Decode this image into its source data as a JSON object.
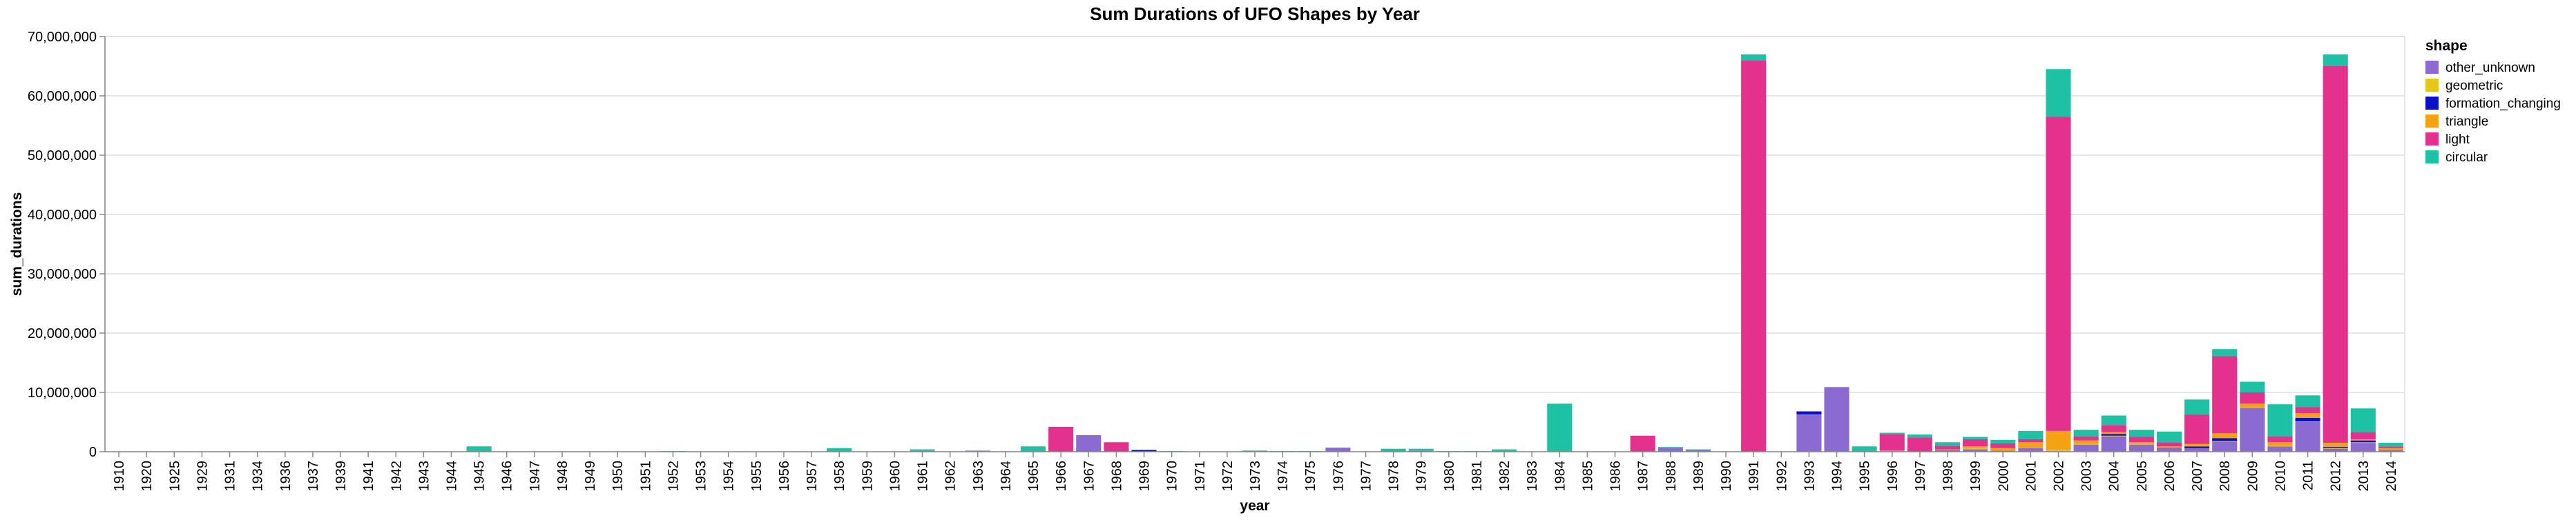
{
  "chart_data": {
    "type": "bar",
    "stacked": true,
    "title": "Sum Durations of UFO Shapes by Year",
    "xlabel": "year",
    "ylabel": "sum_durations",
    "ylim": [
      0,
      70000000
    ],
    "yticks": [
      0,
      10000000,
      20000000,
      30000000,
      40000000,
      50000000,
      60000000,
      70000000
    ],
    "ytick_labels": [
      "0",
      "10,000,000",
      "20,000,000",
      "30,000,000",
      "40,000,000",
      "50,000,000",
      "60,000,000",
      "70,000,000"
    ],
    "grid": true,
    "legend": {
      "title": "shape",
      "position": "right"
    },
    "categories": [
      "1910",
      "1920",
      "1925",
      "1929",
      "1931",
      "1934",
      "1936",
      "1937",
      "1939",
      "1941",
      "1942",
      "1943",
      "1944",
      "1945",
      "1946",
      "1947",
      "1948",
      "1949",
      "1950",
      "1951",
      "1952",
      "1953",
      "1954",
      "1955",
      "1956",
      "1957",
      "1958",
      "1959",
      "1960",
      "1961",
      "1962",
      "1963",
      "1964",
      "1965",
      "1966",
      "1967",
      "1968",
      "1969",
      "1970",
      "1971",
      "1972",
      "1973",
      "1974",
      "1975",
      "1976",
      "1977",
      "1978",
      "1979",
      "1980",
      "1981",
      "1982",
      "1983",
      "1984",
      "1985",
      "1986",
      "1987",
      "1988",
      "1989",
      "1990",
      "1991",
      "1992",
      "1993",
      "1994",
      "1995",
      "1996",
      "1997",
      "1998",
      "1999",
      "2000",
      "2001",
      "2002",
      "2003",
      "2004",
      "2005",
      "2006",
      "2007",
      "2008",
      "2009",
      "2010",
      "2011",
      "2012",
      "2013",
      "2014"
    ],
    "series": [
      {
        "name": "other_unknown",
        "color": "#8b6ad1",
        "values": [
          0,
          0,
          0,
          0,
          0,
          0,
          0,
          0,
          0,
          0,
          0,
          0,
          0,
          0,
          0,
          0,
          0,
          0,
          0,
          0,
          0,
          0,
          0,
          0,
          0,
          0,
          0,
          0,
          0,
          200000,
          0,
          100000,
          0,
          0,
          0,
          2800000,
          0,
          0,
          0,
          0,
          0,
          0,
          0,
          0,
          700000,
          0,
          0,
          200000,
          0,
          0,
          0,
          0,
          0,
          0,
          0,
          0,
          600000,
          300000,
          0,
          0,
          0,
          6300000,
          10900000,
          0,
          100000,
          0,
          300000,
          400000,
          200000,
          600000,
          100000,
          1200000,
          2600000,
          1200000,
          700000,
          600000,
          1700000,
          7400000,
          900000,
          5000000,
          500000,
          1500000,
          300000
        ]
      },
      {
        "name": "geometric",
        "color": "#e6c619",
        "values": [
          0,
          0,
          0,
          0,
          0,
          0,
          0,
          0,
          0,
          0,
          0,
          0,
          0,
          0,
          0,
          0,
          0,
          0,
          0,
          0,
          0,
          0,
          0,
          0,
          0,
          0,
          0,
          0,
          0,
          0,
          0,
          0,
          0,
          0,
          0,
          0,
          0,
          0,
          0,
          0,
          0,
          0,
          0,
          0,
          0,
          0,
          0,
          0,
          0,
          0,
          0,
          0,
          0,
          0,
          0,
          0,
          0,
          0,
          0,
          0,
          0,
          0,
          0,
          0,
          0,
          0,
          0,
          200000,
          0,
          0,
          200000,
          100000,
          100000,
          100000,
          0,
          0,
          100000,
          100000,
          100000,
          100000,
          100000,
          100000,
          0
        ]
      },
      {
        "name": "formation_changing",
        "color": "#0a10c8",
        "values": [
          0,
          0,
          0,
          0,
          0,
          0,
          0,
          0,
          0,
          0,
          0,
          0,
          0,
          0,
          0,
          0,
          0,
          0,
          0,
          0,
          0,
          0,
          0,
          0,
          0,
          0,
          0,
          0,
          0,
          0,
          0,
          0,
          0,
          0,
          0,
          0,
          0,
          300000,
          0,
          0,
          0,
          0,
          0,
          0,
          0,
          0,
          0,
          0,
          0,
          0,
          0,
          0,
          0,
          0,
          0,
          0,
          0,
          0,
          0,
          0,
          0,
          500000,
          0,
          0,
          0,
          0,
          0,
          0,
          0,
          0,
          0,
          0,
          300000,
          0,
          0,
          300000,
          500000,
          0,
          0,
          600000,
          200000,
          300000,
          0
        ]
      },
      {
        "name": "triangle",
        "color": "#f5a212",
        "values": [
          0,
          0,
          0,
          0,
          0,
          0,
          0,
          0,
          0,
          0,
          0,
          0,
          0,
          0,
          0,
          0,
          0,
          0,
          0,
          0,
          0,
          0,
          0,
          0,
          0,
          0,
          0,
          0,
          0,
          0,
          0,
          0,
          0,
          0,
          0,
          0,
          0,
          0,
          0,
          0,
          0,
          0,
          0,
          0,
          0,
          0,
          0,
          0,
          0,
          0,
          0,
          0,
          0,
          0,
          0,
          0,
          0,
          0,
          0,
          0,
          0,
          0,
          0,
          0,
          100000,
          0,
          100000,
          300000,
          400000,
          1000000,
          3200000,
          600000,
          300000,
          300000,
          200000,
          400000,
          800000,
          600000,
          600000,
          800000,
          700000,
          200000,
          300000
        ]
      },
      {
        "name": "light",
        "color": "#e4318d",
        "values": [
          0,
          0,
          0,
          0,
          0,
          0,
          0,
          0,
          0,
          0,
          0,
          0,
          0,
          0,
          0,
          0,
          0,
          0,
          0,
          0,
          0,
          0,
          0,
          0,
          0,
          0,
          0,
          0,
          0,
          0,
          0,
          0,
          0,
          0,
          4200000,
          0,
          1600000,
          0,
          0,
          0,
          0,
          0,
          0,
          0,
          0,
          0,
          0,
          0,
          0,
          0,
          0,
          0,
          0,
          0,
          0,
          2700000,
          0,
          0,
          0,
          66000000,
          0,
          0,
          0,
          0,
          2800000,
          2400000,
          600000,
          1200000,
          800000,
          500000,
          53000000,
          700000,
          1200000,
          900000,
          700000,
          5000000,
          13000000,
          1900000,
          1000000,
          1000000,
          63500000,
          1200000,
          300000
        ]
      },
      {
        "name": "circular",
        "color": "#1dc2a5",
        "values": [
          0,
          0,
          0,
          0,
          0,
          0,
          0,
          0,
          0,
          0,
          0,
          0,
          0,
          900000,
          0,
          0,
          0,
          0,
          0,
          0,
          100000,
          0,
          0,
          0,
          0,
          0,
          600000,
          0,
          0,
          200000,
          0,
          100000,
          0,
          900000,
          0,
          0,
          0,
          0,
          100000,
          0,
          0,
          200000,
          100000,
          100000,
          0,
          0,
          500000,
          300000,
          100000,
          100000,
          400000,
          0,
          8100000,
          0,
          0,
          0,
          200000,
          100000,
          0,
          1000000,
          0,
          0,
          0,
          900000,
          200000,
          500000,
          600000,
          400000,
          600000,
          1400000,
          8000000,
          1100000,
          1600000,
          1200000,
          1800000,
          2500000,
          1200000,
          1800000,
          5400000,
          2000000,
          2000000,
          4000000,
          600000
        ]
      }
    ]
  }
}
